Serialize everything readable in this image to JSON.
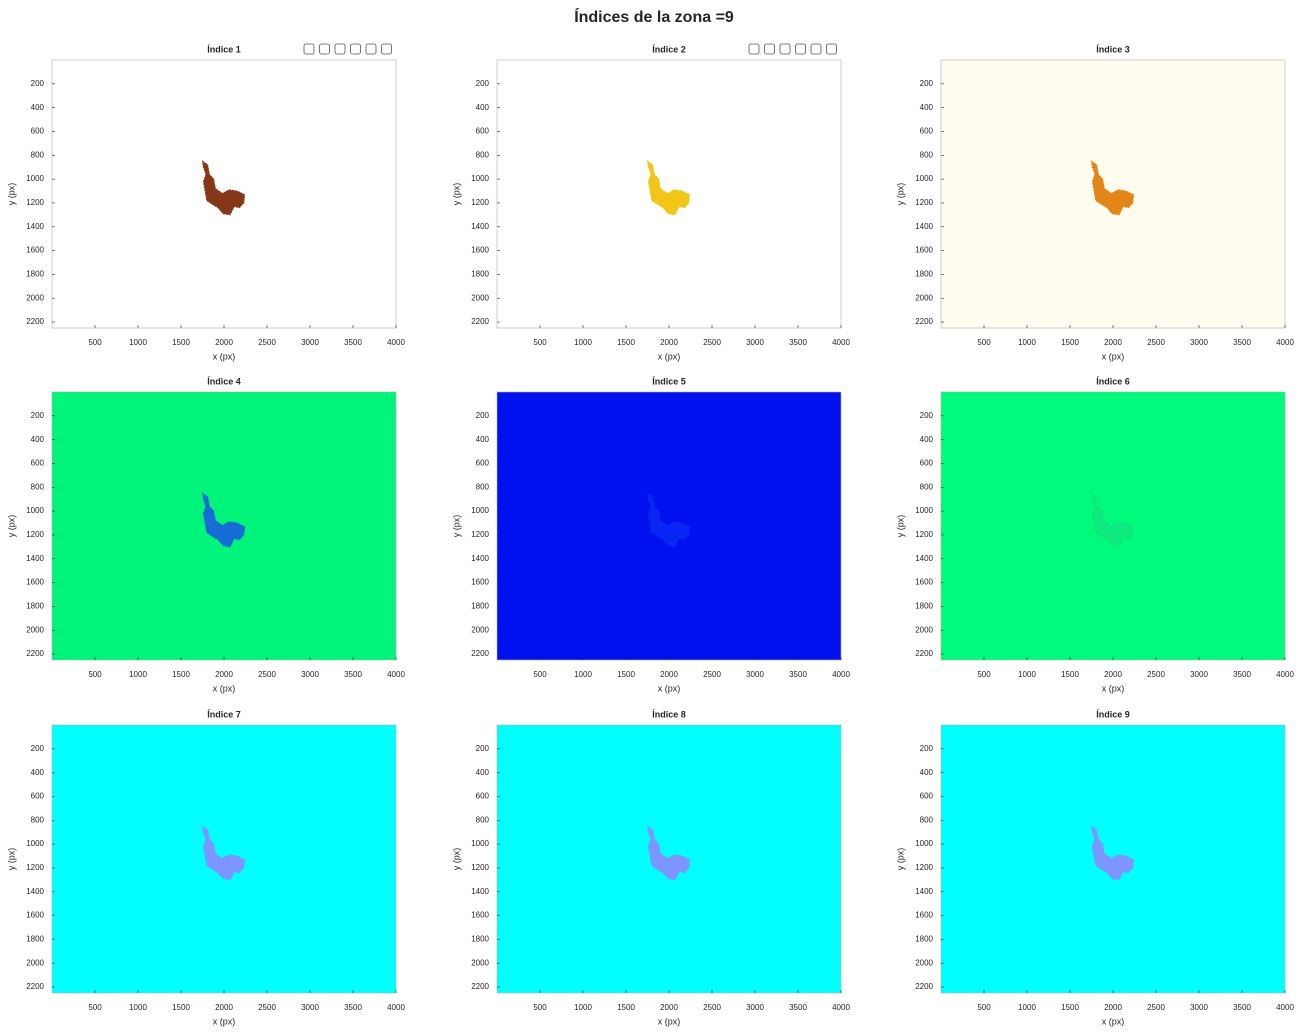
{
  "figure_title": "Índices de la zona =9",
  "chart_data": [
    {
      "type": "image",
      "title": "Índice 1",
      "xlabel": "x (px)",
      "ylabel": "y (px)",
      "xlim": [
        0,
        4000
      ],
      "ylim": [
        0,
        2250
      ],
      "ydir": "reverse",
      "xticks": [
        500,
        1000,
        1500,
        2000,
        2500,
        3000,
        3500,
        4000
      ],
      "yticks": [
        200,
        400,
        600,
        800,
        1000,
        1200,
        1400,
        1600,
        1800,
        2000,
        2200
      ],
      "background": "#ffffff",
      "color": "#7a2200",
      "toolbar": true
    },
    {
      "type": "image",
      "title": "Índice 2",
      "xlabel": "x (px)",
      "ylabel": "y (px)",
      "xlim": [
        0,
        4000
      ],
      "ylim": [
        0,
        2250
      ],
      "ydir": "reverse",
      "xticks": [
        500,
        1000,
        1500,
        2000,
        2500,
        3000,
        3500,
        4000
      ],
      "yticks": [
        200,
        400,
        600,
        800,
        1000,
        1200,
        1400,
        1600,
        1800,
        2000,
        2200
      ],
      "background": "#ffffff",
      "color": "#f0c000",
      "toolbar": true
    },
    {
      "type": "image",
      "title": "Índice 3",
      "xlabel": "x (px)",
      "ylabel": "y (px)",
      "xlim": [
        0,
        4000
      ],
      "ylim": [
        0,
        2250
      ],
      "ydir": "reverse",
      "xticks": [
        500,
        1000,
        1500,
        2000,
        2500,
        3000,
        3500,
        4000
      ],
      "yticks": [
        200,
        400,
        600,
        800,
        1000,
        1200,
        1400,
        1600,
        1800,
        2000,
        2200
      ],
      "background": "#fffdf0",
      "color": "#e07a00",
      "toolbar": false
    },
    {
      "type": "image",
      "title": "Índice 4",
      "xlabel": "x (px)",
      "ylabel": "y (px)",
      "xlim": [
        0,
        4000
      ],
      "ylim": [
        0,
        2250
      ],
      "ydir": "reverse",
      "xticks": [
        500,
        1000,
        1500,
        2000,
        2500,
        3000,
        3500,
        4000
      ],
      "yticks": [
        200,
        400,
        600,
        800,
        1000,
        1200,
        1400,
        1600,
        1800,
        2000,
        2200
      ],
      "background": "#00f47a",
      "color": "#1a5ee0",
      "toolbar": false
    },
    {
      "type": "image",
      "title": "Índice 5",
      "xlabel": "x (px)",
      "ylabel": "y (px)",
      "xlim": [
        0,
        4000
      ],
      "ylim": [
        0,
        2250
      ],
      "ydir": "reverse",
      "xticks": [
        500,
        1000,
        1500,
        2000,
        2500,
        3000,
        3500,
        4000
      ],
      "yticks": [
        200,
        400,
        600,
        800,
        1000,
        1200,
        1400,
        1600,
        1800,
        2000,
        2200
      ],
      "background": "#0010ee",
      "color": "#0a28f4",
      "toolbar": false
    },
    {
      "type": "image",
      "title": "Índice 6",
      "xlabel": "x (px)",
      "ylabel": "y (px)",
      "xlim": [
        0,
        4000
      ],
      "ylim": [
        0,
        2250
      ],
      "ydir": "reverse",
      "xticks": [
        500,
        1000,
        1500,
        2000,
        2500,
        3000,
        3500,
        4000
      ],
      "yticks": [
        200,
        400,
        600,
        800,
        1000,
        1200,
        1400,
        1600,
        1800,
        2000,
        2200
      ],
      "background": "#00fa7c",
      "color": "#10e880",
      "toolbar": false
    },
    {
      "type": "image",
      "title": "Índice 7",
      "xlabel": "x (px)",
      "ylabel": "y (px)",
      "xlim": [
        0,
        4000
      ],
      "ylim": [
        0,
        2250
      ],
      "ydir": "reverse",
      "xticks": [
        500,
        1000,
        1500,
        2000,
        2500,
        3000,
        3500,
        4000
      ],
      "yticks": [
        200,
        400,
        600,
        800,
        1000,
        1200,
        1400,
        1600,
        1800,
        2000,
        2200
      ],
      "background": "#00ffff",
      "color": "#8a8aff",
      "toolbar": false
    },
    {
      "type": "image",
      "title": "Índice 8",
      "xlabel": "x (px)",
      "ylabel": "y (px)",
      "xlim": [
        0,
        4000
      ],
      "ylim": [
        0,
        2250
      ],
      "ydir": "reverse",
      "xticks": [
        500,
        1000,
        1500,
        2000,
        2500,
        3000,
        3500,
        4000
      ],
      "yticks": [
        200,
        400,
        600,
        800,
        1000,
        1200,
        1400,
        1600,
        1800,
        2000,
        2200
      ],
      "background": "#00ffff",
      "color": "#8a8aff",
      "toolbar": false
    },
    {
      "type": "image",
      "title": "Índice 9",
      "xlabel": "x (px)",
      "ylabel": "y (px)",
      "xlim": [
        0,
        4000
      ],
      "ylim": [
        0,
        2250
      ],
      "ydir": "reverse",
      "xticks": [
        500,
        1000,
        1500,
        2000,
        2500,
        3000,
        3500,
        4000
      ],
      "yticks": [
        200,
        400,
        600,
        800,
        1000,
        1200,
        1400,
        1600,
        1800,
        2000,
        2200
      ],
      "background": "#00ffff",
      "color": "#8a8aff",
      "toolbar": false
    }
  ]
}
